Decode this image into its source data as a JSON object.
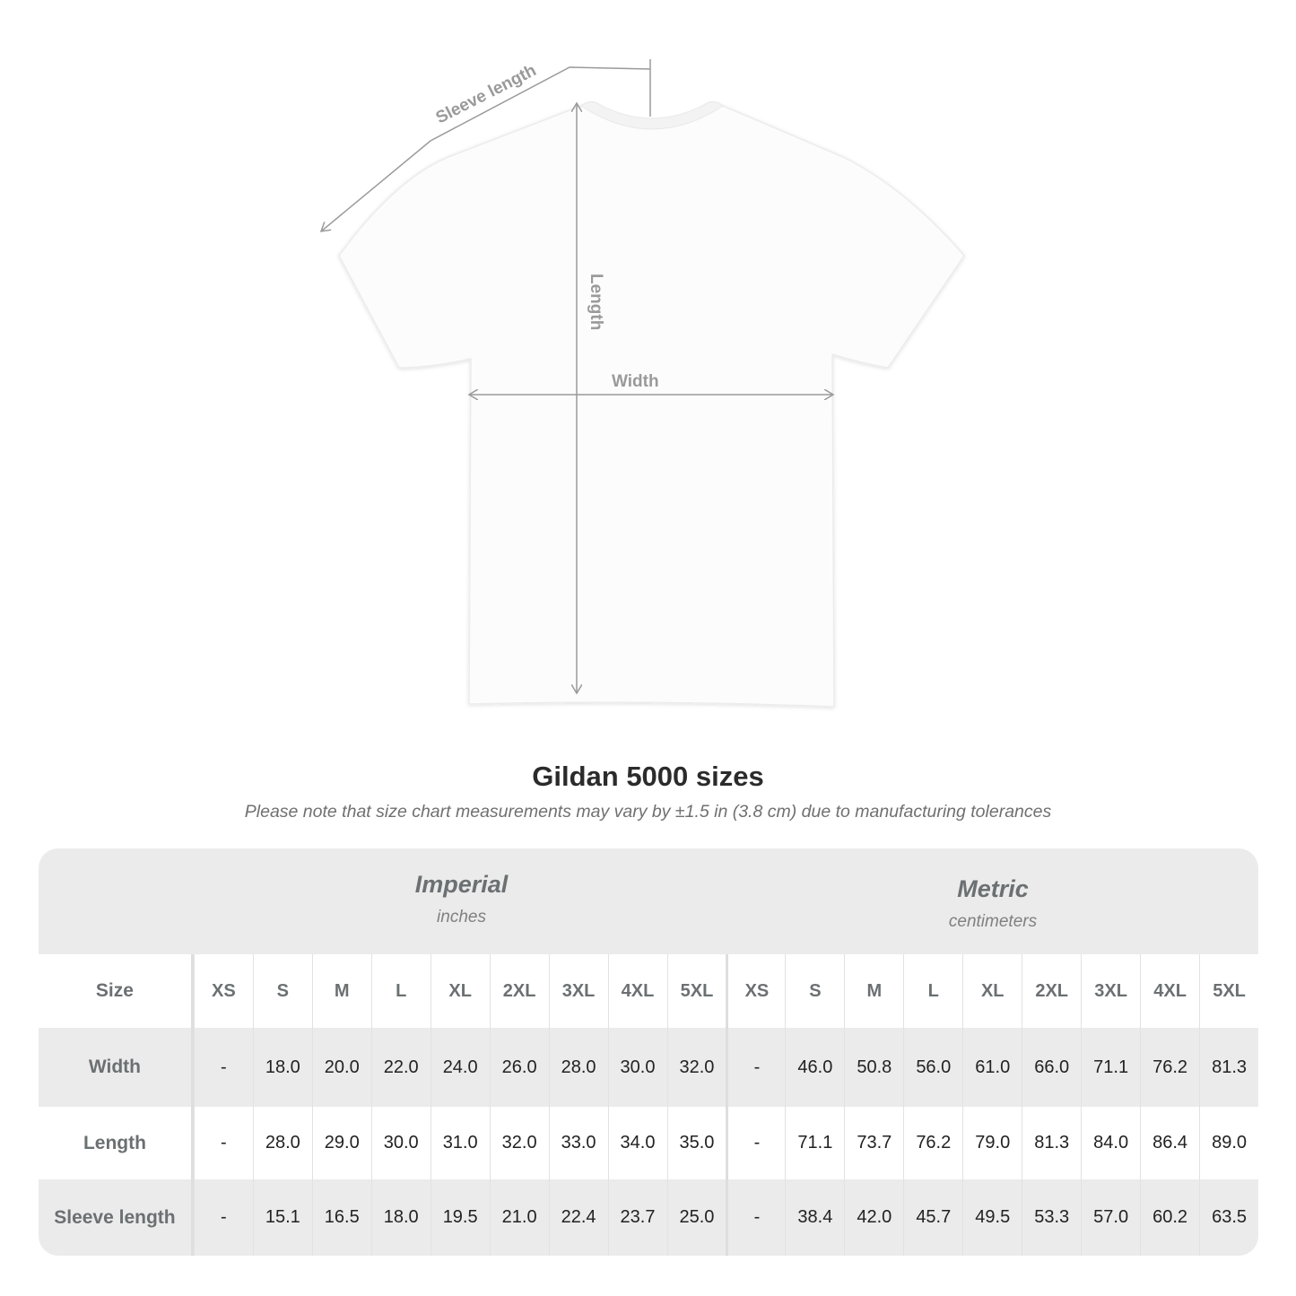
{
  "diagram": {
    "labels": {
      "sleeve": "Sleeve length",
      "length": "Length",
      "width": "Width"
    },
    "line_color": "#9a9a9a"
  },
  "title": "Gildan 5000 sizes",
  "subtitle": "Please note that size chart measurements may vary by ±1.5 in (3.8 cm) due to manufacturing tolerances",
  "table": {
    "imperial": {
      "name": "Imperial",
      "unit": "inches"
    },
    "metric": {
      "name": "Metric",
      "unit": "centimeters"
    },
    "size_label": "Size",
    "sizes": [
      "XS",
      "S",
      "M",
      "L",
      "XL",
      "2XL",
      "3XL",
      "4XL",
      "5XL"
    ],
    "rows": [
      {
        "label": "Width",
        "imperial": [
          "-",
          "18.0",
          "20.0",
          "22.0",
          "24.0",
          "26.0",
          "28.0",
          "30.0",
          "32.0"
        ],
        "metric": [
          "-",
          "46.0",
          "50.8",
          "56.0",
          "61.0",
          "66.0",
          "71.1",
          "76.2",
          "81.3"
        ]
      },
      {
        "label": "Length",
        "imperial": [
          "-",
          "28.0",
          "29.0",
          "30.0",
          "31.0",
          "32.0",
          "33.0",
          "34.0",
          "35.0"
        ],
        "metric": [
          "-",
          "71.1",
          "73.7",
          "76.2",
          "79.0",
          "81.3",
          "84.0",
          "86.4",
          "89.0"
        ]
      },
      {
        "label": "Sleeve length",
        "imperial": [
          "-",
          "15.1",
          "16.5",
          "18.0",
          "19.5",
          "21.0",
          "22.4",
          "23.7",
          "25.0"
        ],
        "metric": [
          "-",
          "38.4",
          "42.0",
          "45.7",
          "49.5",
          "53.3",
          "57.0",
          "60.2",
          "63.5"
        ]
      }
    ],
    "band_color": "#ebebeb"
  }
}
